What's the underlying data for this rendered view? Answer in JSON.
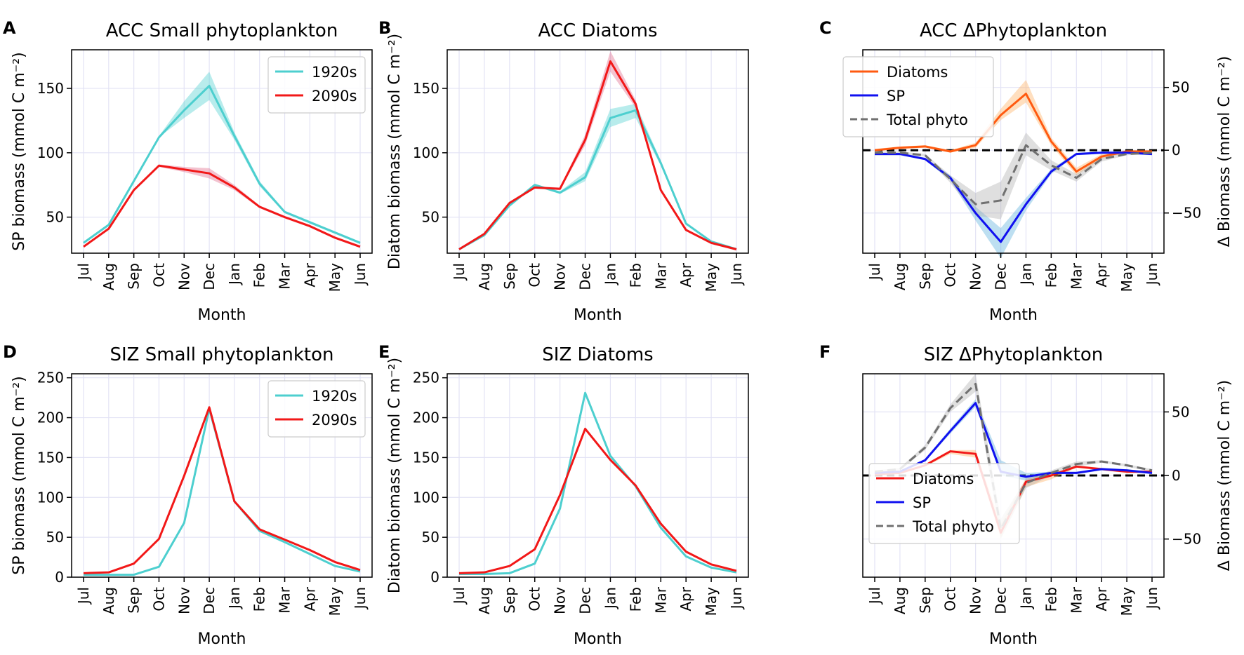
{
  "months": [
    "Jul",
    "Aug",
    "Sep",
    "Oct",
    "Nov",
    "Dec",
    "Jan",
    "Feb",
    "Mar",
    "Apr",
    "May",
    "Jun"
  ],
  "chart_data": [
    {
      "id": "A",
      "letter": "A",
      "type": "line",
      "title": "ACC Small phytoplankton",
      "xlabel": "Month",
      "ylabel": "SP biomass (mmol C m⁻²)",
      "ylim": [
        22,
        180
      ],
      "yticks": [
        50,
        100,
        150
      ],
      "legend": {
        "position": "top-right"
      },
      "series": [
        {
          "name": "1920s",
          "color": "#4dcfcf",
          "band_color": "#4dcfcf",
          "values": [
            30,
            44,
            78,
            112,
            133,
            152,
            113,
            76,
            54,
            46,
            38,
            30
          ],
          "lower": [
            30,
            44,
            78,
            112,
            127,
            141,
            110,
            74,
            53,
            45,
            37,
            29
          ],
          "upper": [
            31,
            45,
            79,
            113,
            140,
            163,
            116,
            78,
            55,
            47,
            39,
            31
          ]
        },
        {
          "name": "2090s",
          "color": "#f21818",
          "band_color": "#e06a8a",
          "values": [
            27,
            41,
            71,
            90,
            87,
            84,
            73,
            58,
            50,
            43,
            34,
            27
          ],
          "lower": [
            27,
            41,
            71,
            89,
            85,
            80,
            71,
            57,
            49,
            42,
            33,
            26
          ],
          "upper": [
            28,
            42,
            72,
            91,
            89,
            88,
            75,
            59,
            51,
            44,
            35,
            28
          ]
        }
      ]
    },
    {
      "id": "B",
      "letter": "B",
      "type": "line",
      "title": "ACC Diatoms",
      "xlabel": "Month",
      "ylabel": "Diatom biomass (mmol C m⁻²)",
      "ylim": [
        22,
        180
      ],
      "yticks": [
        50,
        100,
        150
      ],
      "legend": null,
      "series": [
        {
          "name": "1920s",
          "color": "#4dcfcf",
          "band_color": "#4dcfcf",
          "values": [
            25,
            36,
            59,
            75,
            69,
            81,
            127,
            133,
            92,
            45,
            31,
            25
          ],
          "lower": [
            25,
            35,
            58,
            74,
            68,
            78,
            120,
            127,
            90,
            44,
            30,
            25
          ],
          "upper": [
            26,
            37,
            60,
            76,
            70,
            85,
            134,
            138,
            94,
            46,
            32,
            26
          ]
        },
        {
          "name": "2090s",
          "color": "#f21818",
          "band_color": "#e06a8a",
          "values": [
            25,
            37,
            61,
            73,
            72,
            110,
            171,
            138,
            71,
            40,
            30,
            25
          ],
          "lower": [
            25,
            36,
            60,
            72,
            71,
            106,
            163,
            135,
            70,
            39,
            29,
            24
          ],
          "upper": [
            26,
            38,
            62,
            74,
            73,
            114,
            179,
            141,
            72,
            41,
            31,
            26
          ]
        }
      ]
    },
    {
      "id": "C",
      "letter": "C",
      "type": "line",
      "title": "ACC ΔPhytoplankton",
      "xlabel": "Month",
      "ylabel": "Δ Biomass (mmol C m⁻²)",
      "ylim": [
        -82,
        80
      ],
      "yticks": [
        -50,
        0,
        50
      ],
      "zero_line": true,
      "legend": {
        "position": "top-left"
      },
      "series": [
        {
          "name": "Diatoms",
          "color": "#ff5a10",
          "band_color": "#ffb060",
          "dashed": false,
          "values": [
            0,
            2,
            3,
            -1,
            4,
            28,
            45,
            7,
            -17,
            -5,
            -1,
            -1
          ],
          "lower": [
            0,
            1,
            2,
            -2,
            2,
            24,
            38,
            4,
            -20,
            -7,
            -2,
            -2
          ],
          "upper": [
            1,
            3,
            4,
            0,
            6,
            33,
            56,
            10,
            -14,
            -3,
            0,
            0
          ]
        },
        {
          "name": "SP",
          "color": "#1010f0",
          "band_color": "#5ab0dc",
          "dashed": false,
          "values": [
            -3,
            -3,
            -7,
            -22,
            -50,
            -73,
            -43,
            -17,
            -3,
            -2,
            -2,
            -3
          ],
          "lower": [
            -4,
            -4,
            -8,
            -24,
            -56,
            -86,
            -48,
            -19,
            -4,
            -3,
            -3,
            -4
          ],
          "upper": [
            -2,
            -2,
            -6,
            -20,
            -45,
            -62,
            -38,
            -15,
            -2,
            -1,
            -1,
            -2
          ]
        },
        {
          "name": "Total phyto",
          "color": "#707070",
          "band_color": "#b0b0b0",
          "dashed": true,
          "values": [
            -2,
            -2,
            -4,
            -23,
            -43,
            -40,
            4,
            -12,
            -22,
            -7,
            -3,
            -2
          ],
          "lower": [
            -3,
            -3,
            -5,
            -26,
            -52,
            -55,
            -4,
            -16,
            -25,
            -9,
            -4,
            -3
          ],
          "upper": [
            -1,
            -1,
            -3,
            -20,
            -34,
            -25,
            14,
            -8,
            -19,
            -5,
            -2,
            -1
          ]
        }
      ]
    },
    {
      "id": "D",
      "letter": "D",
      "type": "line",
      "title": "SIZ Small phytoplankton",
      "xlabel": "Month",
      "ylabel": "SP biomass (mmol C m⁻²)",
      "ylim": [
        0,
        255
      ],
      "yticks": [
        0,
        50,
        100,
        150,
        200,
        250
      ],
      "legend": {
        "position": "top-right"
      },
      "series": [
        {
          "name": "1920s",
          "color": "#4dcfcf",
          "band_color": "#4dcfcf",
          "values": [
            3,
            3,
            3,
            13,
            68,
            211,
            95,
            58,
            44,
            29,
            14,
            7
          ],
          "lower": [
            3,
            3,
            3,
            13,
            67,
            209,
            94,
            57,
            43,
            28,
            13,
            6
          ],
          "upper": [
            4,
            4,
            4,
            14,
            69,
            213,
            96,
            59,
            45,
            30,
            15,
            8
          ]
        },
        {
          "name": "2090s",
          "color": "#f21818",
          "band_color": "#e06a8a",
          "values": [
            5,
            6,
            17,
            48,
            127,
            213,
            95,
            60,
            47,
            34,
            19,
            9
          ],
          "lower": [
            5,
            5,
            16,
            47,
            126,
            211,
            94,
            59,
            46,
            33,
            18,
            8
          ],
          "upper": [
            6,
            7,
            18,
            49,
            128,
            215,
            96,
            61,
            48,
            35,
            20,
            10
          ]
        }
      ]
    },
    {
      "id": "E",
      "letter": "E",
      "type": "line",
      "title": "SIZ Diatoms",
      "xlabel": "Month",
      "ylabel": "Diatom biomass (mmol C m⁻²)",
      "ylim": [
        0,
        255
      ],
      "yticks": [
        0,
        50,
        100,
        150,
        200,
        250
      ],
      "legend": null,
      "series": [
        {
          "name": "1920s",
          "color": "#4dcfcf",
          "band_color": "#4dcfcf",
          "values": [
            4,
            4,
            5,
            17,
            86,
            231,
            152,
            114,
            62,
            26,
            12,
            6
          ],
          "lower": [
            4,
            4,
            5,
            16,
            85,
            229,
            150,
            113,
            61,
            25,
            11,
            5
          ],
          "upper": [
            5,
            5,
            6,
            18,
            87,
            233,
            154,
            115,
            63,
            27,
            13,
            7
          ]
        },
        {
          "name": "2090s",
          "color": "#f21818",
          "band_color": "#e06a8a",
          "values": [
            5,
            6,
            14,
            35,
            103,
            186,
            147,
            115,
            67,
            32,
            16,
            8
          ],
          "lower": [
            5,
            5,
            13,
            34,
            102,
            184,
            146,
            114,
            66,
            31,
            15,
            7
          ],
          "upper": [
            6,
            7,
            15,
            36,
            104,
            188,
            148,
            116,
            68,
            33,
            17,
            9
          ]
        }
      ]
    },
    {
      "id": "F",
      "letter": "F",
      "type": "line",
      "title": "SIZ ΔPhytoplankton",
      "xlabel": "Month",
      "ylabel": "Δ Biomass (mmol C m⁻²)",
      "ylim": [
        -80,
        80
      ],
      "yticks": [
        -50,
        0,
        50
      ],
      "zero_line": true,
      "legend": {
        "position": "lower-left"
      },
      "series": [
        {
          "name": "Diatoms",
          "color": "#f21818",
          "band_color": "#ffb060",
          "dashed": false,
          "values": [
            1,
            2,
            8,
            19,
            17,
            -45,
            -5,
            0,
            7,
            5,
            3,
            3
          ],
          "lower": [
            0,
            1,
            7,
            17,
            14,
            -49,
            -9,
            -3,
            6,
            4,
            2,
            2
          ],
          "upper": [
            2,
            3,
            9,
            20,
            20,
            -38,
            -2,
            1,
            8,
            6,
            4,
            4
          ]
        },
        {
          "name": "SP",
          "color": "#1010f0",
          "band_color": "#5ab0dc",
          "dashed": false,
          "values": [
            2,
            3,
            12,
            35,
            57,
            3,
            -1,
            2,
            2,
            5,
            4,
            2
          ],
          "lower": [
            1,
            2,
            11,
            33,
            54,
            0,
            -4,
            1,
            1,
            4,
            3,
            1
          ],
          "upper": [
            3,
            4,
            13,
            37,
            60,
            12,
            2,
            3,
            3,
            6,
            5,
            3
          ]
        },
        {
          "name": "Total phyto",
          "color": "#707070",
          "band_color": "#b0b0b0",
          "dashed": true,
          "values": [
            3,
            5,
            22,
            53,
            72,
            -42,
            -6,
            2,
            9,
            11,
            8,
            4
          ],
          "lower": [
            2,
            4,
            20,
            50,
            66,
            -50,
            -10,
            0,
            7,
            10,
            7,
            3
          ],
          "upper": [
            4,
            6,
            24,
            56,
            80,
            -34,
            -3,
            4,
            11,
            12,
            9,
            5
          ]
        }
      ]
    }
  ]
}
